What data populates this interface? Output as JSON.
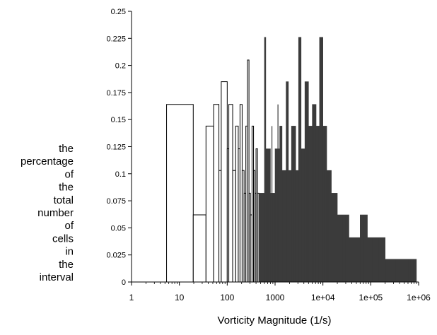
{
  "chart_data": {
    "type": "bar",
    "title": "",
    "xlabel": "Vorticity Magnitude (1/s)",
    "ylabel_lines": [
      "the",
      "percentage",
      "of",
      "the",
      "total",
      "number",
      "of",
      "cells",
      "in",
      "the",
      "interval"
    ],
    "xscale": "log",
    "xlim": [
      1,
      1000000
    ],
    "ylim": [
      0,
      0.25
    ],
    "grid": false,
    "legend": "none",
    "colors": {
      "filled_bar": "#3b3b3b",
      "outline_bar": "#000000",
      "background": "#ffffff",
      "axis": "#000000"
    },
    "x_tick_labels": [
      {
        "value": 1,
        "label": "1"
      },
      {
        "value": 10,
        "label": "10"
      },
      {
        "value": 100,
        "label": "100"
      },
      {
        "value": 1000,
        "label": "1000"
      },
      {
        "value": 10000,
        "label": "1e+04"
      },
      {
        "value": 100000,
        "label": "1e+05"
      },
      {
        "value": 1000000,
        "label": "1e+06"
      }
    ],
    "y_tick_labels": [
      {
        "value": 0,
        "label": "0"
      },
      {
        "value": 0.025,
        "label": "0.025"
      },
      {
        "value": 0.05,
        "label": "0.05"
      },
      {
        "value": 0.075,
        "label": "0.075"
      },
      {
        "value": 0.1,
        "label": "0.1"
      },
      {
        "value": 0.125,
        "label": "0.125"
      },
      {
        "value": 0.15,
        "label": "0.15"
      },
      {
        "value": 0.175,
        "label": "0.175"
      },
      {
        "value": 0.2,
        "label": "0.2"
      },
      {
        "value": 0.225,
        "label": "0.225"
      },
      {
        "value": 0.25,
        "label": "0.25"
      }
    ],
    "bars": [
      {
        "x0": 5.4,
        "x1": 19.5,
        "y": 0.164,
        "style": "outline"
      },
      {
        "x0": 19.5,
        "x1": 36,
        "y": 0.062,
        "style": "outline"
      },
      {
        "x0": 36,
        "x1": 52,
        "y": 0.144,
        "style": "outline"
      },
      {
        "x0": 52,
        "x1": 67,
        "y": 0.164,
        "style": "outline"
      },
      {
        "x0": 67,
        "x1": 75,
        "y": 0.103,
        "style": "outline"
      },
      {
        "x0": 75,
        "x1": 100,
        "y": 0.185,
        "style": "outline"
      },
      {
        "x0": 100,
        "x1": 108,
        "y": 0.123,
        "style": "outline"
      },
      {
        "x0": 108,
        "x1": 130,
        "y": 0.164,
        "style": "outline"
      },
      {
        "x0": 130,
        "x1": 150,
        "y": 0.103,
        "style": "outline"
      },
      {
        "x0": 150,
        "x1": 170,
        "y": 0.144,
        "style": "outline"
      },
      {
        "x0": 170,
        "x1": 185,
        "y": 0.123,
        "style": "outline"
      },
      {
        "x0": 185,
        "x1": 205,
        "y": 0.164,
        "style": "outline"
      },
      {
        "x0": 205,
        "x1": 225,
        "y": 0.103,
        "style": "outline"
      },
      {
        "x0": 225,
        "x1": 245,
        "y": 0.082,
        "style": "outline"
      },
      {
        "x0": 245,
        "x1": 265,
        "y": 0.144,
        "style": "outline"
      },
      {
        "x0": 265,
        "x1": 285,
        "y": 0.205,
        "style": "outline"
      },
      {
        "x0": 285,
        "x1": 305,
        "y": 0.082,
        "style": "outline"
      },
      {
        "x0": 305,
        "x1": 330,
        "y": 0.062,
        "style": "outline"
      },
      {
        "x0": 330,
        "x1": 355,
        "y": 0.144,
        "style": "outline"
      },
      {
        "x0": 355,
        "x1": 380,
        "y": 0.103,
        "style": "outline"
      },
      {
        "x0": 380,
        "x1": 400,
        "y": 0.082,
        "style": "outline"
      },
      {
        "x0": 400,
        "x1": 430,
        "y": 0.123,
        "style": "outline"
      },
      {
        "x0": 430,
        "x1": 460,
        "y": 0.082,
        "style": "outline"
      },
      {
        "x0": 460,
        "x1": 600,
        "y": 0.082,
        "style": "filled"
      },
      {
        "x0": 600,
        "x1": 640,
        "y": 0.226,
        "style": "filled"
      },
      {
        "x0": 640,
        "x1": 800,
        "y": 0.123,
        "style": "filled"
      },
      {
        "x0": 800,
        "x1": 1000,
        "y": 0.082,
        "style": "filled"
      },
      {
        "x0": 1000,
        "x1": 1250,
        "y": 0.123,
        "style": "filled"
      },
      {
        "x0": 1250,
        "x1": 1400,
        "y": 0.144,
        "style": "filled"
      },
      {
        "x0": 1400,
        "x1": 1700,
        "y": 0.103,
        "style": "filled"
      },
      {
        "x0": 1700,
        "x1": 1900,
        "y": 0.185,
        "style": "filled"
      },
      {
        "x0": 1900,
        "x1": 2200,
        "y": 0.103,
        "style": "filled"
      },
      {
        "x0": 2200,
        "x1": 2700,
        "y": 0.144,
        "style": "filled"
      },
      {
        "x0": 2700,
        "x1": 3100,
        "y": 0.103,
        "style": "filled"
      },
      {
        "x0": 3100,
        "x1": 3500,
        "y": 0.226,
        "style": "filled"
      },
      {
        "x0": 3500,
        "x1": 4200,
        "y": 0.123,
        "style": "filled"
      },
      {
        "x0": 4200,
        "x1": 5000,
        "y": 0.185,
        "style": "filled"
      },
      {
        "x0": 5000,
        "x1": 6000,
        "y": 0.144,
        "style": "filled"
      },
      {
        "x0": 6000,
        "x1": 7200,
        "y": 0.164,
        "style": "filled"
      },
      {
        "x0": 7200,
        "x1": 8500,
        "y": 0.144,
        "style": "filled"
      },
      {
        "x0": 8500,
        "x1": 10000,
        "y": 0.226,
        "style": "filled"
      },
      {
        "x0": 10000,
        "x1": 12000,
        "y": 0.144,
        "style": "filled"
      },
      {
        "x0": 12000,
        "x1": 15000,
        "y": 0.103,
        "style": "filled"
      },
      {
        "x0": 15000,
        "x1": 20000,
        "y": 0.082,
        "style": "filled"
      },
      {
        "x0": 20000,
        "x1": 35000,
        "y": 0.062,
        "style": "filled"
      },
      {
        "x0": 35000,
        "x1": 60000,
        "y": 0.041,
        "style": "filled"
      },
      {
        "x0": 60000,
        "x1": 85000,
        "y": 0.062,
        "style": "filled"
      },
      {
        "x0": 85000,
        "x1": 200000,
        "y": 0.041,
        "style": "filled"
      },
      {
        "x0": 200000,
        "x1": 900000,
        "y": 0.021,
        "style": "filled"
      }
    ],
    "spikes": [
      {
        "x": 620,
        "y": 0.226
      },
      {
        "x": 720,
        "y": 0.103
      },
      {
        "x": 860,
        "y": 0.144
      },
      {
        "x": 1150,
        "y": 0.164
      },
      {
        "x": 1320,
        "y": 0.144
      },
      {
        "x": 1800,
        "y": 0.185
      },
      {
        "x": 2400,
        "y": 0.144
      },
      {
        "x": 3300,
        "y": 0.226
      },
      {
        "x": 4600,
        "y": 0.185
      },
      {
        "x": 6600,
        "y": 0.164
      },
      {
        "x": 8000,
        "y": 0.144
      },
      {
        "x": 9300,
        "y": 0.226
      },
      {
        "x": 11000,
        "y": 0.144
      },
      {
        "x": 13000,
        "y": 0.103
      },
      {
        "x": 17000,
        "y": 0.082
      },
      {
        "x": 25000,
        "y": 0.062
      },
      {
        "x": 30000,
        "y": 0.062
      },
      {
        "x": 45000,
        "y": 0.041
      },
      {
        "x": 70000,
        "y": 0.062
      },
      {
        "x": 110000,
        "y": 0.041
      },
      {
        "x": 150000,
        "y": 0.041
      },
      {
        "x": 260000,
        "y": 0.021
      },
      {
        "x": 320000,
        "y": 0.021
      },
      {
        "x": 400000,
        "y": 0.021
      },
      {
        "x": 500000,
        "y": 0.021
      },
      {
        "x": 600000,
        "y": 0.021
      },
      {
        "x": 700000,
        "y": 0.021
      },
      {
        "x": 800000,
        "y": 0.021
      }
    ]
  }
}
